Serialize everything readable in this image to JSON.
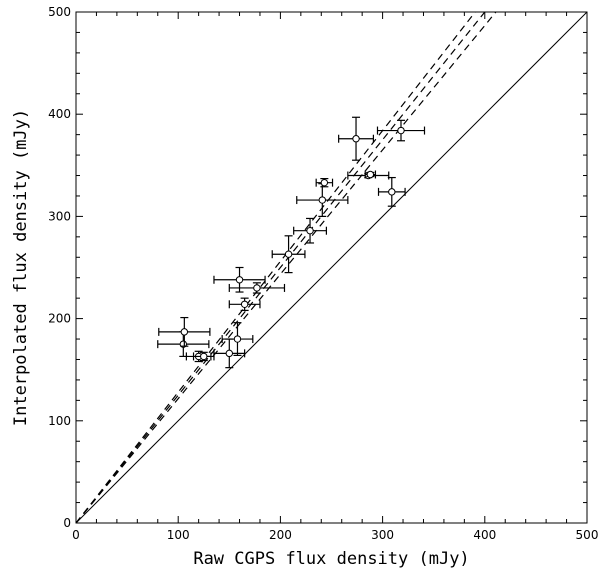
{
  "chart_data": {
    "type": "scatter",
    "xlabel": "Raw CGPS flux density (mJy)",
    "ylabel": "Interpolated flux density (mJy)",
    "xlim": [
      0,
      500
    ],
    "ylim": [
      0,
      500
    ],
    "xticks": [
      0,
      100,
      200,
      300,
      400,
      500
    ],
    "yticks": [
      0,
      100,
      200,
      300,
      400,
      500
    ],
    "xtick_labels": [
      "0",
      "100",
      "200",
      "300",
      "400",
      "500"
    ],
    "ytick_labels": [
      "0",
      "100",
      "200",
      "300",
      "400",
      "500"
    ],
    "grid": false,
    "marker": "open-circle",
    "points": [
      {
        "x": 105,
        "y": 175,
        "xerr": 25,
        "yerr": 12
      },
      {
        "x": 106,
        "y": 187,
        "xerr": 25,
        "yerr": 14
      },
      {
        "x": 120,
        "y": 163,
        "xerr": 12,
        "yerr": 5
      },
      {
        "x": 125,
        "y": 163,
        "xerr": 10,
        "yerr": 4
      },
      {
        "x": 150,
        "y": 166,
        "xerr": 15,
        "yerr": 14
      },
      {
        "x": 158,
        "y": 180,
        "xerr": 15,
        "yerr": 16
      },
      {
        "x": 160,
        "y": 238,
        "xerr": 25,
        "yerr": 12
      },
      {
        "x": 165,
        "y": 214,
        "xerr": 15,
        "yerr": 6
      },
      {
        "x": 177,
        "y": 230,
        "xerr": 27,
        "yerr": 5
      },
      {
        "x": 208,
        "y": 263,
        "xerr": 16,
        "yerr": 18
      },
      {
        "x": 229,
        "y": 286,
        "xerr": 16,
        "yerr": 12
      },
      {
        "x": 241,
        "y": 316,
        "xerr": 25,
        "yerr": 16
      },
      {
        "x": 243,
        "y": 333,
        "xerr": 8,
        "yerr": 4
      },
      {
        "x": 274,
        "y": 376,
        "xerr": 17,
        "yerr": 21
      },
      {
        "x": 286,
        "y": 340,
        "xerr": 20,
        "yerr": 2
      },
      {
        "x": 288,
        "y": 341,
        "xerr": 5,
        "yerr": 2
      },
      {
        "x": 309,
        "y": 324,
        "xerr": 13,
        "yerr": 14
      },
      {
        "x": 318,
        "y": 384,
        "xerr": 23,
        "yerr": 10
      }
    ],
    "reference_line": {
      "style": "solid",
      "x": [
        0,
        500
      ],
      "y": [
        0,
        500
      ]
    },
    "fit_lines": [
      {
        "style": "dashed",
        "slope": 1.217
      },
      {
        "style": "dashed",
        "slope": 1.25
      },
      {
        "style": "dashed",
        "slope": 1.28
      }
    ]
  }
}
